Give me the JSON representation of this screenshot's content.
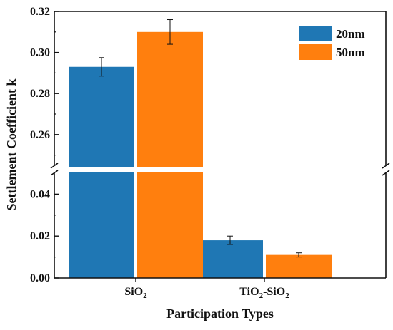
{
  "chart_data": {
    "type": "bar",
    "xlabel": "Participation Types",
    "ylabel": "Settlement Coefficient k",
    "categories": [
      "SiO2",
      "TiO2-SiO2"
    ],
    "category_labels": [
      {
        "base": "SiO",
        "sub": "2",
        "rest": "",
        "sub2": ""
      },
      {
        "base": "TiO",
        "sub": "2",
        "rest": "-SiO",
        "sub2": "2"
      }
    ],
    "series": [
      {
        "name": "20nm",
        "color": "#1f77b4",
        "values": [
          0.293,
          0.018
        ],
        "errors": [
          0.0045,
          0.002
        ]
      },
      {
        "name": "50nm",
        "color": "#ff7f0e",
        "values": [
          0.31,
          0.011
        ],
        "errors": [
          0.006,
          0.001
        ]
      }
    ],
    "axis_break": {
      "lower_range": [
        0,
        0.05
      ],
      "upper_range": [
        0.245,
        0.32
      ]
    },
    "yticks_lower": [
      0.0,
      0.02,
      0.04
    ],
    "yticks_upper": [
      0.26,
      0.28,
      0.3,
      0.32
    ],
    "tick_format_decimals": 2,
    "legend_position": "top-right",
    "grid": false
  }
}
